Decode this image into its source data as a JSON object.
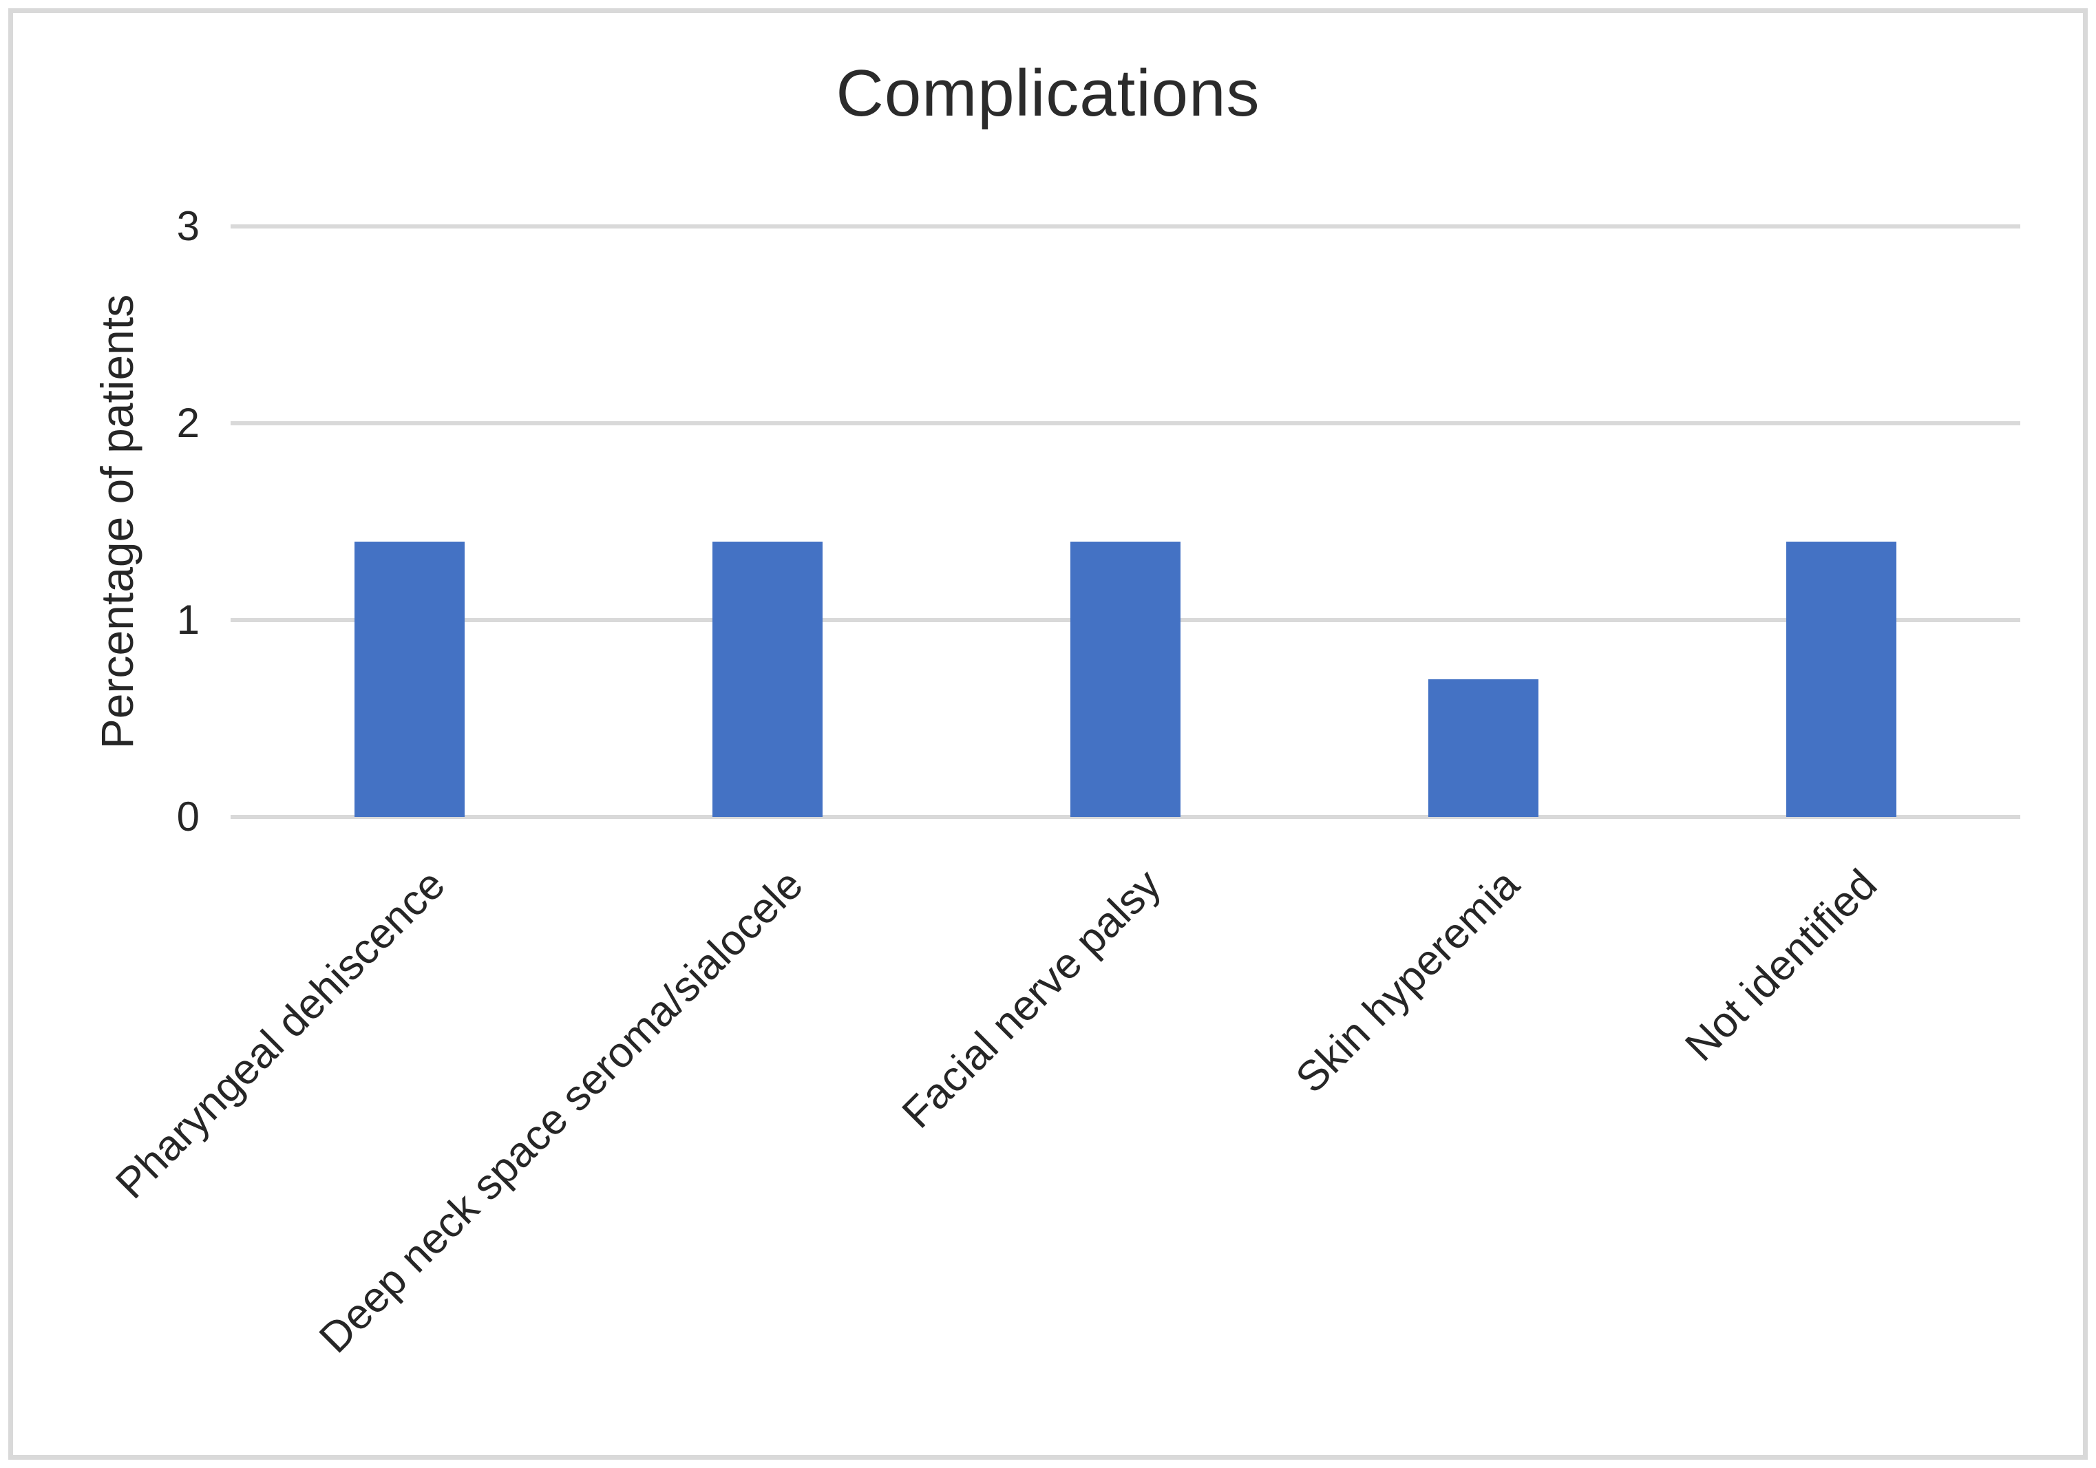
{
  "figure": {
    "background": "#FFFFFF",
    "border_color": "#D9D9D9"
  },
  "chart_data": {
    "type": "bar",
    "title": "Complications",
    "xlabel": "",
    "ylabel": "Percentage of patients",
    "categories": [
      "Pharyngeal dehiscence",
      "Deep neck space seroma/sialocele",
      "Facial nerve palsy",
      "Skin hyperemia",
      "Not identified"
    ],
    "values": [
      1.4,
      1.4,
      1.4,
      0.7,
      1.4
    ],
    "ylim": [
      0,
      3
    ],
    "y_ticks": [
      0,
      1,
      2,
      3
    ],
    "grid": "horizontal-only",
    "legend_position": "none",
    "x_label_rotation_deg": 45,
    "bar_color": "#4472C4",
    "gridline_color": "#D9D9D9",
    "text_color": "#262626"
  }
}
